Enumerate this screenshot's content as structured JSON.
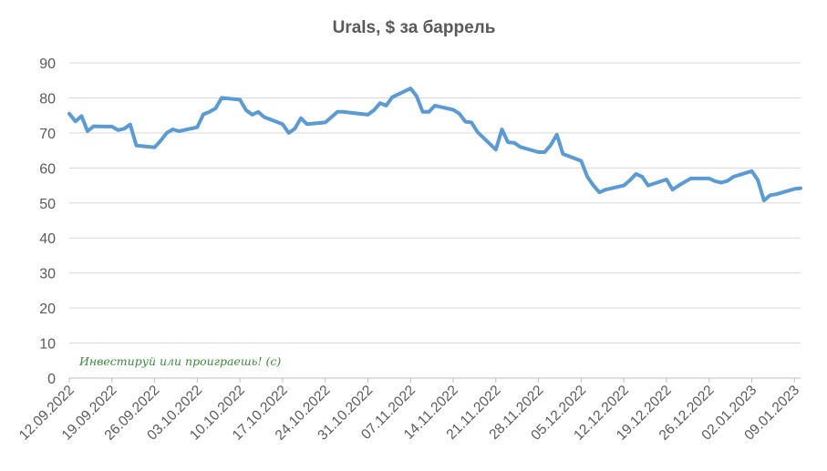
{
  "colors": {
    "series": "#5b9bd5"
  },
  "chart_data": {
    "type": "line",
    "title": "Urals, $ за баррель",
    "xlabel": "",
    "ylabel": "",
    "ylim": [
      0,
      90
    ],
    "yticks": [
      "0",
      "10",
      "20",
      "30",
      "40",
      "50",
      "60",
      "70",
      "80",
      "90"
    ],
    "xticks": [
      "12.09.2022",
      "19.09.2022",
      "26.09.2022",
      "03.10.2022",
      "10.10.2022",
      "17.10.2022",
      "24.10.2022",
      "31.10.2022",
      "07.11.2022",
      "14.11.2022",
      "21.11.2022",
      "28.11.2022",
      "05.12.2022",
      "12.12.2022",
      "19.12.2022",
      "26.12.2022",
      "02.01.2023",
      "09.01.2023"
    ],
    "grid": true,
    "legend": "none",
    "watermark": "Инвестируй или проиграешь! (с)",
    "series": [
      {
        "x": [
          "12.09.2022",
          "13.09.2022",
          "14.09.2022",
          "15.09.2022",
          "16.09.2022",
          "19.09.2022",
          "20.09.2022",
          "21.09.2022",
          "22.09.2022",
          "23.09.2022",
          "26.09.2022",
          "27.09.2022",
          "28.09.2022",
          "29.09.2022",
          "30.09.2022",
          "03.10.2022",
          "04.10.2022",
          "05.10.2022",
          "06.10.2022",
          "07.10.2022",
          "10.10.2022",
          "11.10.2022",
          "12.10.2022",
          "13.10.2022",
          "14.10.2022",
          "17.10.2022",
          "18.10.2022",
          "19.10.2022",
          "20.10.2022",
          "21.10.2022",
          "24.10.2022",
          "25.10.2022",
          "26.10.2022",
          "27.10.2022",
          "28.10.2022",
          "31.10.2022",
          "01.11.2022",
          "02.11.2022",
          "03.11.2022",
          "04.11.2022",
          "07.11.2022",
          "08.11.2022",
          "09.11.2022",
          "10.11.2022",
          "11.11.2022",
          "14.11.2022",
          "15.11.2022",
          "16.11.2022",
          "17.11.2022",
          "18.11.2022",
          "21.11.2022",
          "22.11.2022",
          "23.11.2022",
          "24.11.2022",
          "25.11.2022",
          "28.11.2022",
          "29.11.2022",
          "30.11.2022",
          "01.12.2022",
          "02.12.2022",
          "05.12.2022",
          "06.12.2022",
          "07.12.2022",
          "08.12.2022",
          "09.12.2022",
          "12.12.2022",
          "13.12.2022",
          "14.12.2022",
          "15.12.2022",
          "16.12.2022",
          "19.12.2022",
          "20.12.2022",
          "21.12.2022",
          "22.12.2022",
          "23.12.2022",
          "26.12.2022",
          "27.12.2022",
          "28.12.2022",
          "29.12.2022",
          "30.12.2022",
          "02.01.2023",
          "03.01.2023",
          "04.01.2023",
          "05.01.2023",
          "06.01.2023",
          "09.01.2023",
          "10.01.2023"
        ],
        "values": [
          75.5,
          73.3,
          74.8,
          70.5,
          71.9,
          71.8,
          70.8,
          71.2,
          72.4,
          66.4,
          65.9,
          67.8,
          70.0,
          71.0,
          70.5,
          71.6,
          75.3,
          76.0,
          77.0,
          80.0,
          79.5,
          76.5,
          75.2,
          76.0,
          74.5,
          72.5,
          70.0,
          71.2,
          74.2,
          72.5,
          73.0,
          74.5,
          76.0,
          76.0,
          75.8,
          75.2,
          76.5,
          78.5,
          77.8,
          80.2,
          82.7,
          80.5,
          76.0,
          76.0,
          77.8,
          76.6,
          75.5,
          73.2,
          73.0,
          70.2,
          65.2,
          71.0,
          67.3,
          67.2,
          66.0,
          64.5,
          64.5,
          66.5,
          69.5,
          64.0,
          62.0,
          57.5,
          55.0,
          53.0,
          53.8,
          55.0,
          56.5,
          58.3,
          57.5,
          55.0,
          56.7,
          53.8,
          55.0,
          56.0,
          57.0,
          57.0,
          56.2,
          55.8,
          56.3,
          57.5,
          59.1,
          56.5,
          50.7,
          52.2,
          52.5,
          54.0,
          54.2
        ]
      }
    ]
  }
}
